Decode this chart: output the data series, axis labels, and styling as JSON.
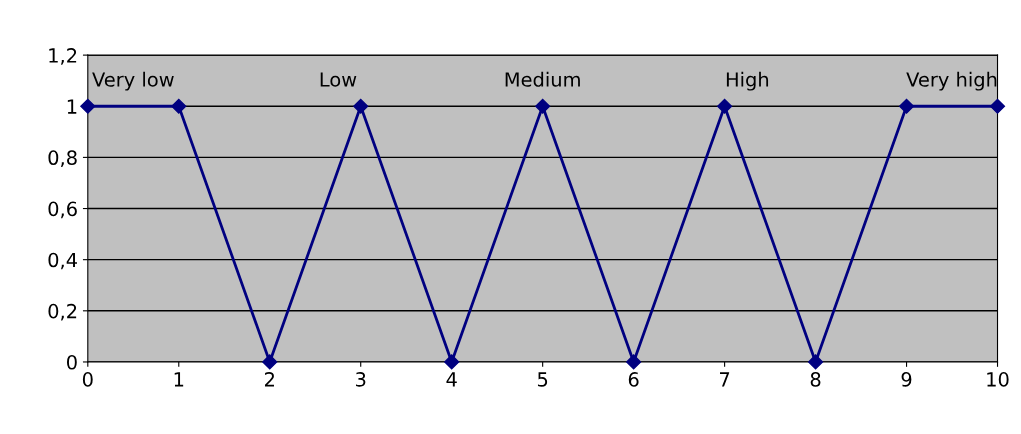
{
  "chart_data": {
    "type": "line",
    "x": [
      0,
      1,
      2,
      3,
      4,
      5,
      6,
      7,
      8,
      9,
      10
    ],
    "series": [
      {
        "color": "#000080",
        "values": [
          1,
          1,
          0,
          1,
          0,
          1,
          0,
          1,
          0,
          1,
          1
        ]
      }
    ],
    "xlim": [
      0,
      10
    ],
    "xticks": [
      0,
      1,
      2,
      3,
      4,
      5,
      6,
      7,
      8,
      9,
      10
    ],
    "ylim": [
      0,
      1.2
    ],
    "yticks": [
      0,
      {
        "value": 0.2,
        "label": "0,2"
      },
      {
        "value": 0.4,
        "label": "0,4"
      },
      {
        "value": 0.6,
        "label": "0,6"
      },
      {
        "value": 0.8,
        "label": "0,8"
      },
      1,
      {
        "value": 1.2,
        "label": "1,2"
      }
    ],
    "grid": "y",
    "marker": "diamond",
    "line_style": "solid",
    "legend": false,
    "annotations": [
      "Very low",
      "Low",
      "Medium",
      "High",
      "Very high"
    ]
  }
}
